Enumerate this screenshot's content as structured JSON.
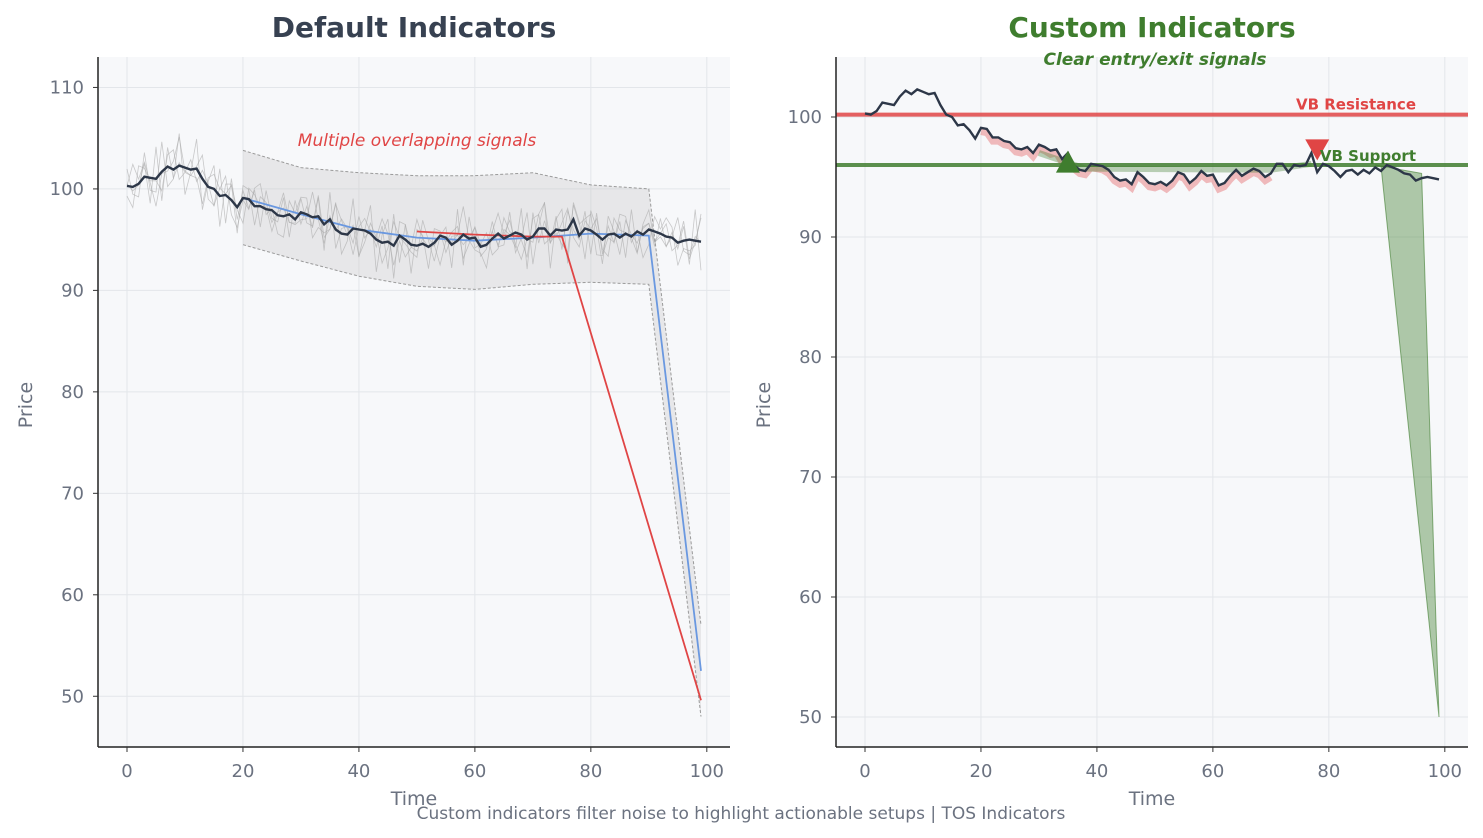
{
  "footer": "Custom indicators filter noise to highlight actionable setups | TOS Indicators",
  "colors": {
    "price": "#2d3748",
    "default_title": "#374151",
    "custom_title": "#3f7d2e",
    "red": "#e04545",
    "green": "#3f7d2e",
    "blue": "#6a98e0",
    "gray": "#9a9a9a",
    "panel_bg": "#f7f8fa"
  },
  "chart_data": [
    {
      "type": "line",
      "title": "Default Indicators",
      "xlabel": "Time",
      "ylabel": "Price",
      "xlim": [
        -5,
        104
      ],
      "ylim": [
        45,
        113
      ],
      "x_ticks": [
        0,
        20,
        40,
        60,
        80,
        100
      ],
      "y_ticks": [
        50,
        60,
        70,
        80,
        90,
        100,
        110
      ],
      "grid": true,
      "annotation": "Multiple overlapping signals",
      "price": [
        100.3,
        100.2,
        100.5,
        101.2,
        101.1,
        101.0,
        101.7,
        102.2,
        101.9,
        102.3,
        102.1,
        101.9,
        102.0,
        101.0,
        100.2,
        100.0,
        99.3,
        99.4,
        98.9,
        98.2,
        99.1,
        99.0,
        98.3,
        98.3,
        98.0,
        97.9,
        97.4,
        97.3,
        97.5,
        97.0,
        97.7,
        97.5,
        97.2,
        97.3,
        96.5,
        97.0,
        96.0,
        95.6,
        95.5,
        96.1,
        96.0,
        95.9,
        95.6,
        95.0,
        94.7,
        94.8,
        94.4,
        95.4,
        95.0,
        94.5,
        94.4,
        94.6,
        94.3,
        94.7,
        95.4,
        95.2,
        94.5,
        94.9,
        95.5,
        95.1,
        95.2,
        94.3,
        94.5,
        95.1,
        95.6,
        95.1,
        95.4,
        95.7,
        95.5,
        95.0,
        95.3,
        96.1,
        96.1,
        95.4,
        96.0,
        95.9,
        96.0,
        97.0,
        95.4,
        96.1,
        95.9,
        95.5,
        95.0,
        95.5,
        95.6,
        95.2,
        95.6,
        95.3,
        95.8,
        95.5,
        96.0,
        95.8,
        95.6,
        95.3,
        95.2,
        94.7,
        94.9,
        95.0,
        94.9,
        94.8
      ],
      "indicators": [
        {
          "name": "ma_blue",
          "color": "#6a98e0",
          "points": [
            [
              20,
              99.1
            ],
            [
              30,
              97.5
            ],
            [
              40,
              96.0
            ],
            [
              50,
              95.2
            ],
            [
              60,
              94.9
            ],
            [
              70,
              95.2
            ],
            [
              80,
              95.6
            ],
            [
              90,
              95.4
            ],
            [
              99,
              52.5
            ]
          ]
        },
        {
          "name": "ma_red",
          "color": "#e04545",
          "points": [
            [
              50,
              95.8
            ],
            [
              60,
              95.5
            ],
            [
              70,
              95.3
            ],
            [
              75,
              95.3
            ],
            [
              99,
              49.6
            ]
          ]
        },
        {
          "name": "band_upper",
          "color": "#9a9a9a",
          "points": [
            [
              20,
              103.8
            ],
            [
              30,
              102.1
            ],
            [
              40,
              101.6
            ],
            [
              50,
              101.3
            ],
            [
              60,
              101.3
            ],
            [
              70,
              101.6
            ],
            [
              80,
              100.4
            ],
            [
              90,
              100.0
            ],
            [
              99,
              57.0
            ]
          ]
        },
        {
          "name": "band_lower",
          "color": "#9a9a9a",
          "points": [
            [
              20,
              94.5
            ],
            [
              30,
              92.9
            ],
            [
              40,
              91.4
            ],
            [
              50,
              90.4
            ],
            [
              60,
              90.1
            ],
            [
              70,
              90.6
            ],
            [
              80,
              90.8
            ],
            [
              90,
              90.6
            ],
            [
              99,
              48.0
            ]
          ]
        }
      ]
    },
    {
      "type": "line",
      "title": "Custom Indicators",
      "subtitle": "Clear entry/exit signals",
      "xlabel": "Time",
      "ylabel": "Price",
      "xlim": [
        -5,
        104
      ],
      "ylim": [
        47.5,
        105
      ],
      "x_ticks": [
        0,
        20,
        40,
        60,
        80,
        100
      ],
      "y_ticks": [
        50,
        60,
        70,
        80,
        90,
        100
      ],
      "grid": true,
      "resistance": {
        "label": "VB Resistance",
        "value": 100.2
      },
      "support": {
        "label": "VB Support",
        "value": 96.0
      },
      "entry_signal": {
        "x": 35,
        "y": 96.2
      },
      "exit_signal": {
        "x": 78,
        "y": 97.3
      },
      "price": [
        100.3,
        100.2,
        100.5,
        101.2,
        101.1,
        101.0,
        101.7,
        102.2,
        101.9,
        102.3,
        102.1,
        101.9,
        102.0,
        101.0,
        100.2,
        100.0,
        99.3,
        99.4,
        98.9,
        98.2,
        99.1,
        99.0,
        98.3,
        98.3,
        98.0,
        97.9,
        97.4,
        97.3,
        97.5,
        97.0,
        97.7,
        97.5,
        97.2,
        97.3,
        96.5,
        97.0,
        96.0,
        95.6,
        95.5,
        96.1,
        96.0,
        95.9,
        95.6,
        95.0,
        94.7,
        94.8,
        94.4,
        95.4,
        95.0,
        94.5,
        94.4,
        94.6,
        94.3,
        94.7,
        95.4,
        95.2,
        94.5,
        94.9,
        95.5,
        95.1,
        95.2,
        94.3,
        94.5,
        95.1,
        95.6,
        95.1,
        95.4,
        95.7,
        95.5,
        95.0,
        95.3,
        96.1,
        96.1,
        95.4,
        96.0,
        95.9,
        96.0,
        97.0,
        95.4,
        96.1,
        95.9,
        95.5,
        95.0,
        95.5,
        95.6,
        95.2,
        95.6,
        95.3,
        95.8,
        95.5,
        96.0,
        95.8,
        95.6,
        95.3,
        95.2,
        94.7,
        94.9,
        95.0,
        94.9,
        94.8
      ]
    }
  ]
}
